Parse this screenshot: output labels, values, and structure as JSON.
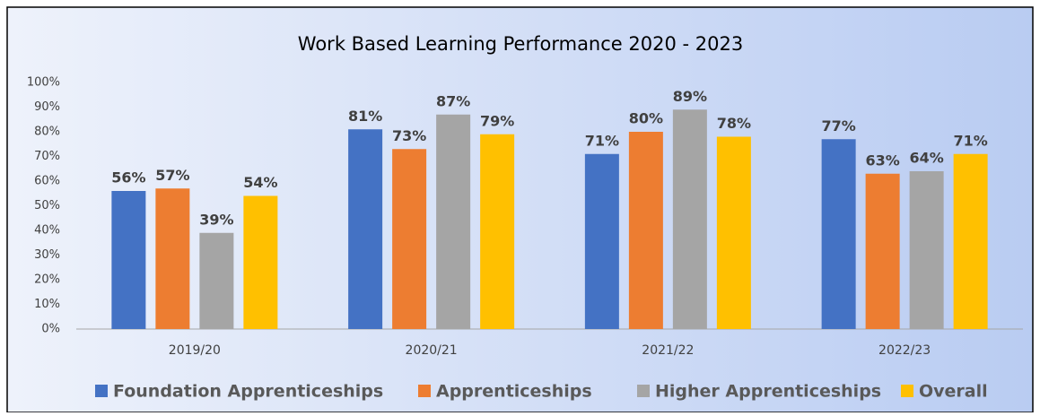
{
  "chart_data": {
    "type": "bar",
    "title": "Work Based Learning Performance 2020 - 2023",
    "categories": [
      "2019/20",
      "2020/21",
      "2021/22",
      "2022/23"
    ],
    "series": [
      {
        "name": "Foundation Apprenticeships",
        "color": "#4472c4",
        "values": [
          56,
          81,
          71,
          77
        ],
        "value_labels": [
          "56%",
          "81%",
          "71%",
          "77%"
        ]
      },
      {
        "name": "Apprenticeships",
        "color": "#ed7d31",
        "values": [
          57,
          73,
          80,
          63
        ],
        "value_labels": [
          "57%",
          "73%",
          "80%",
          "63%"
        ]
      },
      {
        "name": "Higher Apprenticeships",
        "color": "#a5a5a5",
        "values": [
          39,
          87,
          89,
          64
        ],
        "value_labels": [
          "39%",
          "87%",
          "89%",
          "64%"
        ]
      },
      {
        "name": "Overall",
        "color": "#ffc000",
        "values": [
          54,
          79,
          78,
          71
        ],
        "value_labels": [
          "54%",
          "79%",
          "78%",
          "71%"
        ]
      }
    ],
    "ylim": [
      0,
      100
    ],
    "yticks": [
      {
        "value": 0,
        "label": "0%"
      },
      {
        "value": 10,
        "label": "10%"
      },
      {
        "value": 20,
        "label": "20%"
      },
      {
        "value": 30,
        "label": "30%"
      },
      {
        "value": 40,
        "label": "40%"
      },
      {
        "value": 50,
        "label": "50%"
      },
      {
        "value": 60,
        "label": "60%"
      },
      {
        "value": 70,
        "label": "70%"
      },
      {
        "value": 80,
        "label": "80%"
      },
      {
        "value": 90,
        "label": "90%"
      },
      {
        "value": 100,
        "label": "100%"
      }
    ],
    "grid": false,
    "legend": "bottom"
  }
}
